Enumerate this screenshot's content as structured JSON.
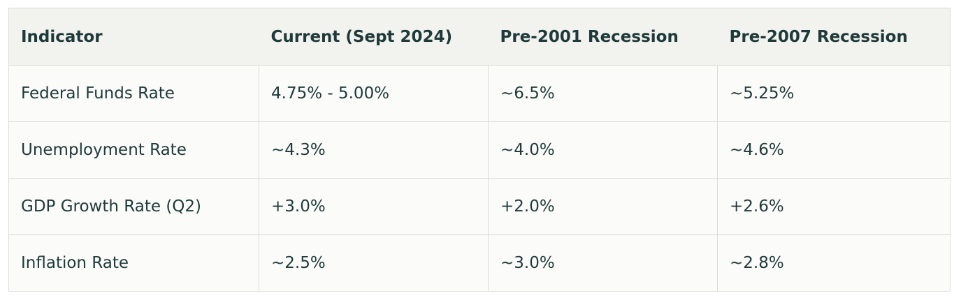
{
  "table": {
    "header": [
      "Indicator",
      "Current (Sept 2024)",
      "Pre-2001 Recession",
      "Pre-2007 Recession"
    ],
    "rows": [
      [
        "Federal Funds Rate",
        "4.75% - 5.00%",
        "~6.5%",
        "~5.25%"
      ],
      [
        "Unemployment Rate",
        "~4.3%",
        "~4.0%",
        "~4.6%"
      ],
      [
        "GDP Growth Rate (Q2)",
        "+3.0%",
        "+2.0%",
        "+2.6%"
      ],
      [
        "Inflation Rate",
        "~2.5%",
        "~3.0%",
        "~2.8%"
      ]
    ]
  }
}
